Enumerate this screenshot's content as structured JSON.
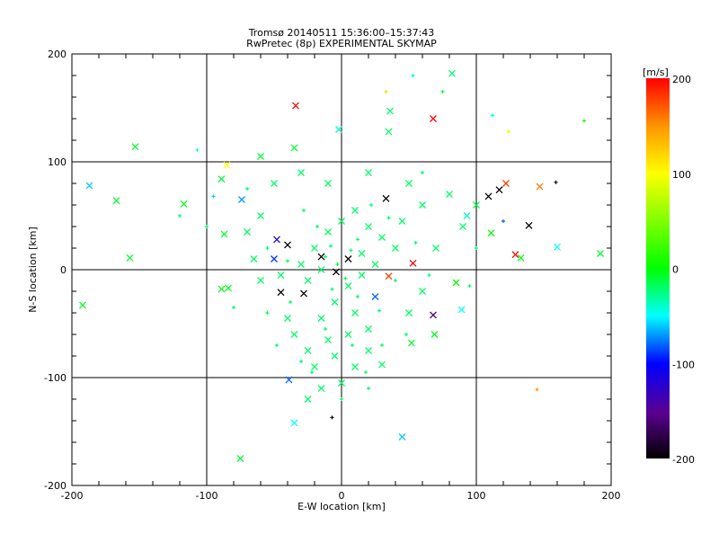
{
  "chart_data": {
    "type": "scatter",
    "title": "Tromsø 20140511 15:36:00–15:37:43",
    "subtitle": "RwPretec (8p) EXPERIMENTAL SKYMAP",
    "xlabel": "E-W location [km]",
    "ylabel": "N-S location [km]",
    "xlim": [
      -200,
      200
    ],
    "ylim": [
      -200,
      200
    ],
    "xticks": [
      "-200",
      "-100",
      "0",
      "100",
      "200"
    ],
    "yticks": [
      "-200",
      "-100",
      "0",
      "100",
      "200"
    ],
    "grid": true,
    "colorbar": {
      "label": "[m/s]",
      "range": [
        -200,
        200
      ],
      "ticks": [
        "200",
        "100",
        "0",
        "-100",
        "-200"
      ]
    },
    "point_fields": [
      "x_km",
      "y_km",
      "velocity_ms",
      "marker(0=plus,1=cross)"
    ],
    "points": [
      [
        -34,
        152,
        200,
        1
      ],
      [
        53,
        180,
        -40,
        0
      ],
      [
        68,
        140,
        200,
        1
      ],
      [
        112,
        143,
        -40,
        0
      ],
      [
        124,
        128,
        90,
        0
      ],
      [
        180,
        138,
        10,
        0
      ],
      [
        -153,
        114,
        -10,
        1
      ],
      [
        -107,
        111,
        -40,
        0
      ],
      [
        -187,
        78,
        -60,
        1
      ],
      [
        -167,
        64,
        -10,
        1
      ],
      [
        -117,
        61,
        -5,
        1
      ],
      [
        -157,
        11,
        -10,
        1
      ],
      [
        -192,
        -33,
        -5,
        1
      ],
      [
        -89,
        -18,
        -5,
        1
      ],
      [
        -84,
        -17,
        -5,
        1
      ],
      [
        -75,
        -175,
        -10,
        1
      ],
      [
        -35,
        -142,
        -50,
        1
      ],
      [
        -7,
        -137,
        -200,
        0
      ],
      [
        45,
        -155,
        -60,
        1
      ],
      [
        -39,
        -102,
        -80,
        1
      ],
      [
        145,
        -111,
        150,
        0
      ],
      [
        109,
        68,
        -200,
        1
      ],
      [
        117,
        74,
        -200,
        1
      ],
      [
        122,
        80,
        180,
        1
      ],
      [
        147,
        77,
        160,
        1
      ],
      [
        159,
        81,
        -200,
        0
      ],
      [
        139,
        41,
        -200,
        1
      ],
      [
        160,
        21,
        -50,
        1
      ],
      [
        192,
        15,
        -10,
        1
      ],
      [
        129,
        14,
        200,
        1
      ],
      [
        133,
        11,
        0,
        1
      ],
      [
        111,
        34,
        0,
        1
      ],
      [
        93,
        50,
        -40,
        1
      ],
      [
        68,
        -42,
        -160,
        1
      ],
      [
        69,
        -60,
        -5,
        1
      ],
      [
        52,
        -68,
        -10,
        1
      ],
      [
        89,
        -37,
        -50,
        1
      ],
      [
        85,
        -12,
        0,
        1
      ],
      [
        35,
        -6,
        180,
        1
      ],
      [
        53,
        6,
        200,
        1
      ],
      [
        33,
        66,
        -200,
        1
      ],
      [
        -40,
        23,
        -200,
        1
      ],
      [
        -15,
        12,
        -200,
        1
      ],
      [
        -45,
        -21,
        -200,
        1
      ],
      [
        -28,
        -22,
        -200,
        1
      ],
      [
        -4,
        -2,
        -200,
        1
      ],
      [
        5,
        10,
        -200,
        1
      ],
      [
        25,
        -25,
        -80,
        1
      ],
      [
        36,
        147,
        -20,
        1
      ],
      [
        35,
        128,
        -20,
        1
      ],
      [
        33,
        165,
        120,
        0
      ],
      [
        82,
        182,
        -20,
        1
      ],
      [
        75,
        165,
        -10,
        0
      ],
      [
        -2,
        130,
        -40,
        1
      ],
      [
        -35,
        113,
        -10,
        1
      ],
      [
        -60,
        105,
        -10,
        1
      ],
      [
        -85,
        97,
        100,
        1
      ],
      [
        -89,
        84,
        -10,
        1
      ],
      [
        -95,
        68,
        -60,
        0
      ],
      [
        -74,
        65,
        -70,
        1
      ],
      [
        -87,
        33,
        -10,
        1
      ],
      [
        -48,
        28,
        -120,
        1
      ],
      [
        -50,
        10,
        -90,
        1
      ],
      [
        -10,
        -65,
        -20,
        1
      ],
      [
        -35,
        -60,
        -20,
        1
      ],
      [
        -20,
        -90,
        -20,
        1
      ],
      [
        20,
        -75,
        -20,
        1
      ],
      [
        10,
        -90,
        -20,
        1
      ],
      [
        30,
        -88,
        -20,
        1
      ],
      [
        -40,
        -45,
        -20,
        1
      ],
      [
        -55,
        -40,
        -10,
        0
      ],
      [
        0,
        -105,
        -20,
        1
      ],
      [
        -15,
        -110,
        -20,
        1
      ],
      [
        -25,
        -120,
        -20,
        1
      ],
      [
        20,
        -110,
        -20,
        0
      ],
      [
        50,
        -40,
        -20,
        1
      ],
      [
        60,
        -20,
        -20,
        1
      ],
      [
        70,
        20,
        -20,
        1
      ],
      [
        90,
        40,
        -20,
        1
      ],
      [
        100,
        60,
        -15,
        1
      ],
      [
        80,
        70,
        -20,
        1
      ],
      [
        60,
        60,
        -20,
        1
      ],
      [
        50,
        80,
        -20,
        1
      ],
      [
        20,
        90,
        -20,
        1
      ],
      [
        -10,
        80,
        -20,
        1
      ],
      [
        -30,
        90,
        -20,
        1
      ],
      [
        -50,
        80,
        -20,
        1
      ],
      [
        -60,
        50,
        -20,
        1
      ],
      [
        -70,
        35,
        -20,
        1
      ],
      [
        -65,
        10,
        -20,
        1
      ],
      [
        -60,
        -10,
        -20,
        1
      ],
      [
        -45,
        -5,
        -20,
        1
      ],
      [
        -30,
        5,
        -20,
        1
      ],
      [
        -20,
        20,
        -20,
        1
      ],
      [
        -10,
        35,
        -20,
        1
      ],
      [
        0,
        45,
        -20,
        1
      ],
      [
        10,
        55,
        -20,
        1
      ],
      [
        20,
        40,
        -20,
        1
      ],
      [
        30,
        30,
        -20,
        1
      ],
      [
        40,
        20,
        -20,
        1
      ],
      [
        45,
        45,
        -20,
        1
      ],
      [
        15,
        15,
        -20,
        1
      ],
      [
        5,
        -15,
        -20,
        1
      ],
      [
        -5,
        -30,
        -20,
        1
      ],
      [
        -15,
        -45,
        -20,
        1
      ],
      [
        10,
        -40,
        -20,
        1
      ],
      [
        20,
        -55,
        -20,
        1
      ],
      [
        -25,
        -75,
        -20,
        1
      ],
      [
        -5,
        -80,
        -20,
        1
      ],
      [
        5,
        -60,
        -20,
        1
      ],
      [
        15,
        -5,
        -20,
        1
      ],
      [
        25,
        5,
        -20,
        1
      ],
      [
        -15,
        0,
        -20,
        1
      ],
      [
        -25,
        -10,
        -20,
        1
      ],
      [
        -8,
        22,
        -20,
        0
      ],
      [
        12,
        28,
        -20,
        0
      ],
      [
        -18,
        40,
        -20,
        0
      ],
      [
        22,
        60,
        -20,
        0
      ],
      [
        -28,
        55,
        -20,
        0
      ],
      [
        35,
        48,
        -20,
        0
      ],
      [
        -38,
        -30,
        -20,
        0
      ],
      [
        28,
        -38,
        -20,
        0
      ],
      [
        -12,
        -55,
        -20,
        0
      ],
      [
        8,
        -70,
        -20,
        0
      ],
      [
        -22,
        -95,
        -20,
        0
      ],
      [
        18,
        -95,
        -20,
        0
      ],
      [
        -3,
        5,
        -10,
        0
      ],
      [
        3,
        -8,
        -15,
        0
      ],
      [
        7,
        18,
        -20,
        0
      ],
      [
        -7,
        -18,
        -20,
        0
      ],
      [
        12,
        -25,
        -20,
        0
      ],
      [
        -12,
        12,
        -20,
        0
      ],
      [
        40,
        -10,
        -20,
        0
      ],
      [
        -40,
        8,
        -20,
        0
      ],
      [
        55,
        25,
        -20,
        0
      ],
      [
        -55,
        20,
        -20,
        0
      ],
      [
        65,
        -5,
        -20,
        0
      ],
      [
        48,
        -60,
        -20,
        0
      ],
      [
        -48,
        -70,
        -20,
        0
      ],
      [
        30,
        -70,
        -20,
        0
      ],
      [
        -30,
        -85,
        -20,
        0
      ],
      [
        0,
        -120,
        -20,
        0
      ],
      [
        60,
        90,
        -20,
        0
      ],
      [
        -70,
        75,
        -20,
        0
      ],
      [
        100,
        20,
        -20,
        0
      ],
      [
        -100,
        40,
        -20,
        0
      ],
      [
        95,
        -15,
        -20,
        0
      ],
      [
        -80,
        -35,
        -20,
        0
      ],
      [
        120,
        45,
        -80,
        0
      ],
      [
        -120,
        50,
        -20,
        0
      ]
    ]
  }
}
